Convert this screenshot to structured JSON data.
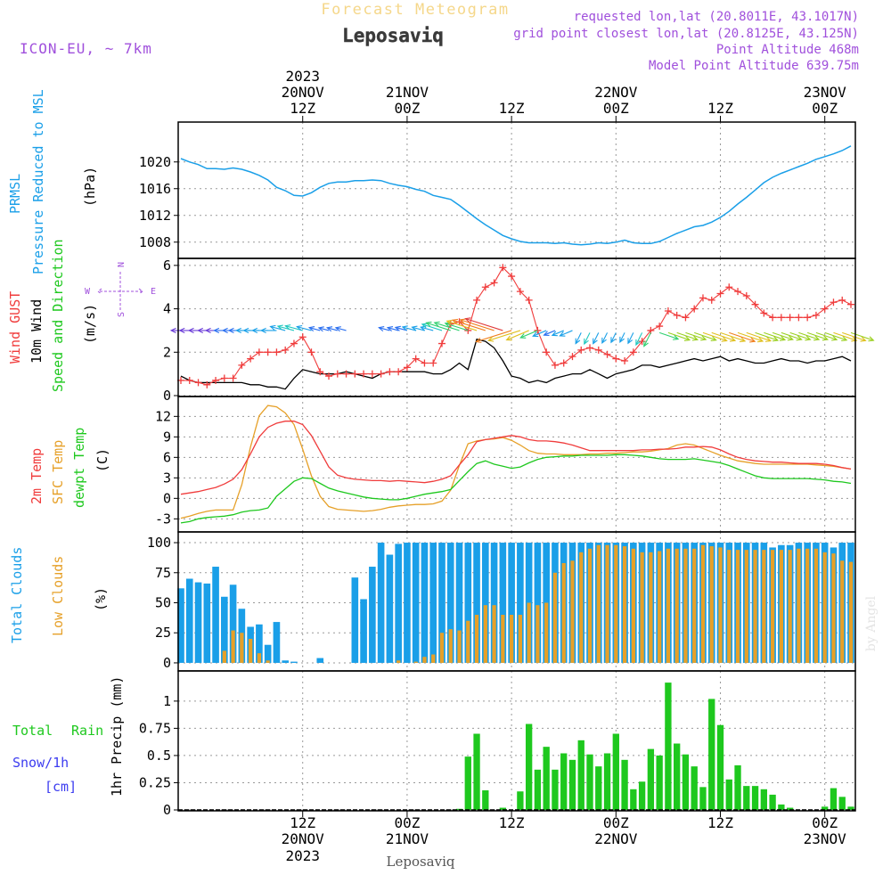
{
  "header": {
    "product": "Forecast Meteogram",
    "location": "Leposaviq",
    "model": "ICON-EU, ~ 7km",
    "requested": "requested lon,lat (20.8011E, 43.1017N)",
    "grid_point": "grid point closest lon,lat (20.8125E, 43.125N)",
    "point_altitude": "Point Altitude 468m",
    "model_altitude": "Model Point Altitude 639.75m",
    "credit": "by Angel",
    "footer_location": "Leposaviq"
  },
  "colors": {
    "pressure": "#1a9fe8",
    "gust": "#f03c3c",
    "wind": "#000000",
    "wind_dir": "#1ec81e",
    "temp": "#f03c3c",
    "sfc": "#e6a028",
    "dew": "#1ec81e",
    "total_clouds": "#1a9fe8",
    "low_clouds": "#e6a028",
    "rain": "#1ec81e",
    "snow": "#3c3cf0",
    "purple": "#a050dc"
  },
  "chart_data": {
    "type": "meteogram",
    "time_axis": {
      "start": "2023-11-19 22Z",
      "step_hours": 1,
      "major_ticks": [
        {
          "hour": 14,
          "time": "12Z",
          "date": "20NOV",
          "year": "2023"
        },
        {
          "hour": 26,
          "time": "00Z",
          "date": "21NOV",
          "year": ""
        },
        {
          "hour": 38,
          "time": "12Z",
          "date": "",
          "year": ""
        },
        {
          "hour": 50,
          "time": "00Z",
          "date": "22NOV",
          "year": ""
        },
        {
          "hour": 62,
          "time": "12Z",
          "date": "",
          "year": ""
        },
        {
          "hour": 74,
          "time": "00Z",
          "date": "23NOV",
          "year": ""
        }
      ],
      "range_hours": [
        0,
        77
      ]
    },
    "panels": [
      {
        "id": "pressure",
        "type": "line",
        "labels": [
          "PRMSL",
          "Pressure Reduced to MSL"
        ],
        "unit": "(hPa)",
        "ylim": [
          1006.5,
          1024.5
        ],
        "yticks": [
          1008,
          1012,
          1016,
          1020
        ],
        "series": [
          {
            "name": "PRMSL",
            "values": [
              1020.5,
              1020.0,
              1019.6,
              1019.0,
              1019.0,
              1018.9,
              1019.1,
              1018.9,
              1018.5,
              1018.0,
              1017.3,
              1016.2,
              1015.7,
              1015.0,
              1014.9,
              1015.4,
              1016.2,
              1016.8,
              1017.0,
              1017.0,
              1017.2,
              1017.2,
              1017.3,
              1017.2,
              1016.8,
              1016.5,
              1016.3,
              1015.9,
              1015.6,
              1015.0,
              1014.7,
              1014.4,
              1013.5,
              1012.5,
              1011.5,
              1010.6,
              1009.8,
              1009.0,
              1008.5,
              1008.1,
              1007.9,
              1007.9,
              1007.9,
              1007.8,
              1007.9,
              1007.7,
              1007.6,
              1007.7,
              1007.9,
              1007.8,
              1008.0,
              1008.3,
              1007.9,
              1007.8,
              1007.8,
              1008.1,
              1008.7,
              1009.3,
              1009.8,
              1010.3,
              1010.5,
              1011.0,
              1011.7,
              1012.6,
              1013.7,
              1014.7,
              1015.8,
              1016.9,
              1017.7,
              1018.3,
              1018.8,
              1019.3,
              1019.8,
              1020.4,
              1020.8,
              1021.2,
              1021.7,
              1022.4
            ]
          }
        ]
      },
      {
        "id": "wind",
        "type": "line",
        "labels": [
          "Wind GUST",
          "10m Wind",
          "Speed and Direction"
        ],
        "unit": "(m/s)",
        "compass": [
          "N",
          "W",
          "E",
          "S"
        ],
        "ylim": [
          0,
          6.2
        ],
        "yticks": [
          0,
          2,
          4,
          6
        ],
        "series": [
          {
            "name": "Wind GUST",
            "marker": "+",
            "values": [
              0.7,
              0.7,
              0.6,
              0.5,
              0.7,
              0.8,
              0.8,
              1.4,
              1.7,
              2.0,
              2.0,
              2.0,
              2.1,
              2.4,
              2.7,
              2.0,
              1.1,
              0.9,
              1.0,
              1.0,
              1.0,
              1.0,
              1.0,
              1.0,
              1.1,
              1.1,
              1.3,
              1.7,
              1.5,
              1.5,
              2.4,
              3.3,
              3.4,
              3.0,
              4.4,
              5.0,
              5.2,
              5.9,
              5.5,
              4.8,
              4.4,
              3.0,
              2.0,
              1.4,
              1.5,
              1.8,
              2.1,
              2.2,
              2.1,
              1.9,
              1.7,
              1.6,
              2.0,
              2.5,
              3.0,
              3.2,
              3.9,
              3.7,
              3.6,
              4.0,
              4.5,
              4.4,
              4.7,
              5.0,
              4.8,
              4.6,
              4.2,
              3.8,
              3.6,
              3.6,
              3.6,
              3.6,
              3.6,
              3.7,
              4.0,
              4.3,
              4.4,
              4.2
            ]
          },
          {
            "name": "10m Wind",
            "values": [
              0.9,
              0.7,
              0.6,
              0.6,
              0.6,
              0.6,
              0.6,
              0.6,
              0.5,
              0.5,
              0.4,
              0.4,
              0.3,
              0.8,
              1.2,
              1.1,
              1.0,
              1.0,
              1.0,
              1.1,
              1.0,
              0.9,
              0.8,
              1.0,
              1.1,
              1.1,
              1.1,
              1.1,
              1.1,
              1.0,
              1.0,
              1.2,
              1.5,
              1.2,
              2.6,
              2.5,
              2.2,
              1.6,
              0.9,
              0.8,
              0.6,
              0.7,
              0.6,
              0.8,
              0.9,
              1.0,
              1.0,
              1.2,
              1.0,
              0.8,
              1.0,
              1.1,
              1.2,
              1.4,
              1.4,
              1.3,
              1.4,
              1.5,
              1.6,
              1.7,
              1.6,
              1.7,
              1.8,
              1.6,
              1.7,
              1.6,
              1.5,
              1.5,
              1.6,
              1.7,
              1.6,
              1.6,
              1.5,
              1.6,
              1.6,
              1.7,
              1.8,
              1.6
            ]
          }
        ],
        "direction_arrow_rows": [
          3.1,
          3.1,
          2.4
        ]
      },
      {
        "id": "temperature",
        "type": "line",
        "labels": [
          "2m Temp",
          "SFC Temp",
          "dewpt Temp"
        ],
        "unit": "(C)",
        "ylim": [
          -4,
          14
        ],
        "yticks": [
          -3,
          0,
          3,
          6,
          9,
          12
        ],
        "series": [
          {
            "name": "2m Temp",
            "values": [
              0.6,
              0.8,
              1.0,
              1.3,
              1.6,
              2.1,
              2.8,
              4.2,
              6.5,
              9.0,
              10.4,
              11.0,
              11.3,
              11.3,
              10.8,
              9.2,
              6.9,
              4.6,
              3.4,
              3.0,
              2.8,
              2.7,
              2.6,
              2.6,
              2.5,
              2.6,
              2.5,
              2.4,
              2.3,
              2.5,
              2.8,
              3.3,
              4.9,
              6.4,
              8.3,
              8.6,
              8.8,
              9.0,
              9.2,
              9.0,
              8.6,
              8.4,
              8.4,
              8.3,
              8.1,
              7.8,
              7.4,
              7.0,
              7.0,
              7.0,
              7.0,
              7.0,
              7.0,
              7.1,
              7.1,
              7.2,
              7.2,
              7.3,
              7.5,
              7.5,
              7.6,
              7.5,
              7.1,
              6.5,
              6.0,
              5.7,
              5.5,
              5.4,
              5.3,
              5.3,
              5.2,
              5.1,
              5.1,
              5.1,
              5.0,
              4.8,
              4.5,
              4.3
            ]
          },
          {
            "name": "SFC Temp",
            "values": [
              -2.9,
              -2.6,
              -2.2,
              -1.9,
              -1.7,
              -1.7,
              -1.7,
              2.0,
              7.5,
              12.1,
              13.6,
              13.4,
              12.5,
              10.8,
              7.2,
              3.3,
              0.3,
              -1.2,
              -1.6,
              -1.7,
              -1.8,
              -1.9,
              -1.8,
              -1.6,
              -1.3,
              -1.1,
              -1.0,
              -0.9,
              -0.9,
              -0.8,
              -0.4,
              1.2,
              4.8,
              8.0,
              8.4,
              8.6,
              8.7,
              8.9,
              8.5,
              7.8,
              7.0,
              6.6,
              6.5,
              6.5,
              6.4,
              6.4,
              6.4,
              6.5,
              6.5,
              6.6,
              6.6,
              6.7,
              6.8,
              6.8,
              6.9,
              7.1,
              7.3,
              7.8,
              8.0,
              7.8,
              7.3,
              6.8,
              6.3,
              5.9,
              5.5,
              5.3,
              5.1,
              5.0,
              5.0,
              5.0,
              5.0,
              5.0,
              5.0,
              4.9,
              4.8,
              4.7,
              4.5,
              4.3
            ]
          },
          {
            "name": "dewpt Temp",
            "values": [
              -3.6,
              -3.4,
              -3.0,
              -2.8,
              -2.7,
              -2.6,
              -2.4,
              -2.0,
              -1.8,
              -1.7,
              -1.4,
              0.3,
              1.4,
              2.5,
              3.0,
              2.9,
              2.2,
              1.5,
              1.1,
              0.8,
              0.5,
              0.2,
              0.0,
              -0.1,
              -0.2,
              -0.2,
              0.0,
              0.3,
              0.6,
              0.8,
              1.0,
              1.3,
              2.6,
              3.9,
              5.1,
              5.5,
              5.0,
              4.7,
              4.4,
              4.6,
              5.2,
              5.7,
              6.0,
              6.1,
              6.2,
              6.2,
              6.3,
              6.3,
              6.3,
              6.3,
              6.4,
              6.4,
              6.3,
              6.2,
              6.0,
              5.8,
              5.7,
              5.7,
              5.7,
              5.8,
              5.6,
              5.4,
              5.2,
              4.8,
              4.3,
              3.8,
              3.3,
              3.0,
              2.9,
              2.9,
              2.9,
              2.9,
              2.9,
              2.8,
              2.7,
              2.5,
              2.4,
              2.2
            ]
          }
        ]
      },
      {
        "id": "clouds",
        "type": "bar",
        "labels": [
          "Total Clouds",
          "Low Clouds"
        ],
        "unit": "(%)",
        "ylim": [
          -3,
          103
        ],
        "yticks": [
          0,
          25,
          50,
          75,
          100
        ],
        "series": [
          {
            "name": "Total Clouds",
            "values": [
              62,
              70,
              67,
              66,
              80,
              55,
              65,
              45,
              30,
              32,
              15,
              34,
              2,
              1,
              0,
              0,
              4,
              0,
              0,
              0,
              71,
              53,
              80,
              100,
              90,
              99,
              100,
              100,
              100,
              100,
              100,
              100,
              100,
              100,
              100,
              100,
              100,
              100,
              100,
              100,
              100,
              100,
              100,
              100,
              100,
              100,
              100,
              100,
              100,
              100,
              100,
              100,
              100,
              100,
              100,
              100,
              100,
              100,
              100,
              100,
              100,
              100,
              100,
              100,
              100,
              100,
              100,
              100,
              96,
              98,
              98,
              100,
              100,
              100,
              100,
              96,
              100,
              100
            ]
          },
          {
            "name": "Low Clouds",
            "values": [
              0,
              0,
              0,
              0,
              0,
              10,
              27,
              25,
              20,
              8,
              2,
              0,
              0,
              0,
              0,
              0,
              0,
              0,
              0,
              0,
              0,
              0,
              0,
              0,
              0,
              2,
              0,
              1,
              5,
              7,
              25,
              28,
              27,
              35,
              40,
              48,
              48,
              40,
              40,
              40,
              50,
              48,
              50,
              75,
              83,
              85,
              92,
              95,
              98,
              98,
              98,
              97,
              95,
              92,
              92,
              93,
              95,
              95,
              95,
              95,
              98,
              97,
              96,
              94,
              94,
              94,
              94,
              94,
              94,
              94,
              94,
              95,
              95,
              95,
              92,
              91,
              85,
              84
            ]
          }
        ]
      },
      {
        "id": "precip",
        "type": "bar",
        "labels_left": [
          "Total Rain",
          "Snow/1h",
          "[cm]"
        ],
        "ylabel": "1hr Precip (mm)",
        "ylim": [
          0,
          1.22
        ],
        "yticks": [
          0,
          0.25,
          0.5,
          0.75,
          1
        ],
        "ytick_labels": [
          "0",
          "0.25",
          "0.5",
          "0.75",
          "1"
        ],
        "series": [
          {
            "name": "Total Rain",
            "values": [
              0,
              0,
              0,
              0,
              0,
              0,
              0,
              0,
              0,
              0,
              0,
              0,
              0,
              0,
              0,
              0,
              0,
              0,
              0,
              0,
              0,
              0,
              0,
              0,
              0,
              0,
              0,
              0,
              0,
              0,
              0,
              0,
              0.01,
              0.49,
              0.7,
              0.18,
              0,
              0.02,
              0,
              0.17,
              0.79,
              0.37,
              0.58,
              0.37,
              0.52,
              0.46,
              0.64,
              0.51,
              0.4,
              0.52,
              0.7,
              0.46,
              0.19,
              0.26,
              0.56,
              0.5,
              1.17,
              0.61,
              0.51,
              0.4,
              0.21,
              1.02,
              0.78,
              0.28,
              0.41,
              0.22,
              0.22,
              0.19,
              0.14,
              0.05,
              0.02,
              0,
              0,
              0,
              0.03,
              0.2,
              0.12,
              0.03
            ]
          }
        ]
      }
    ]
  }
}
